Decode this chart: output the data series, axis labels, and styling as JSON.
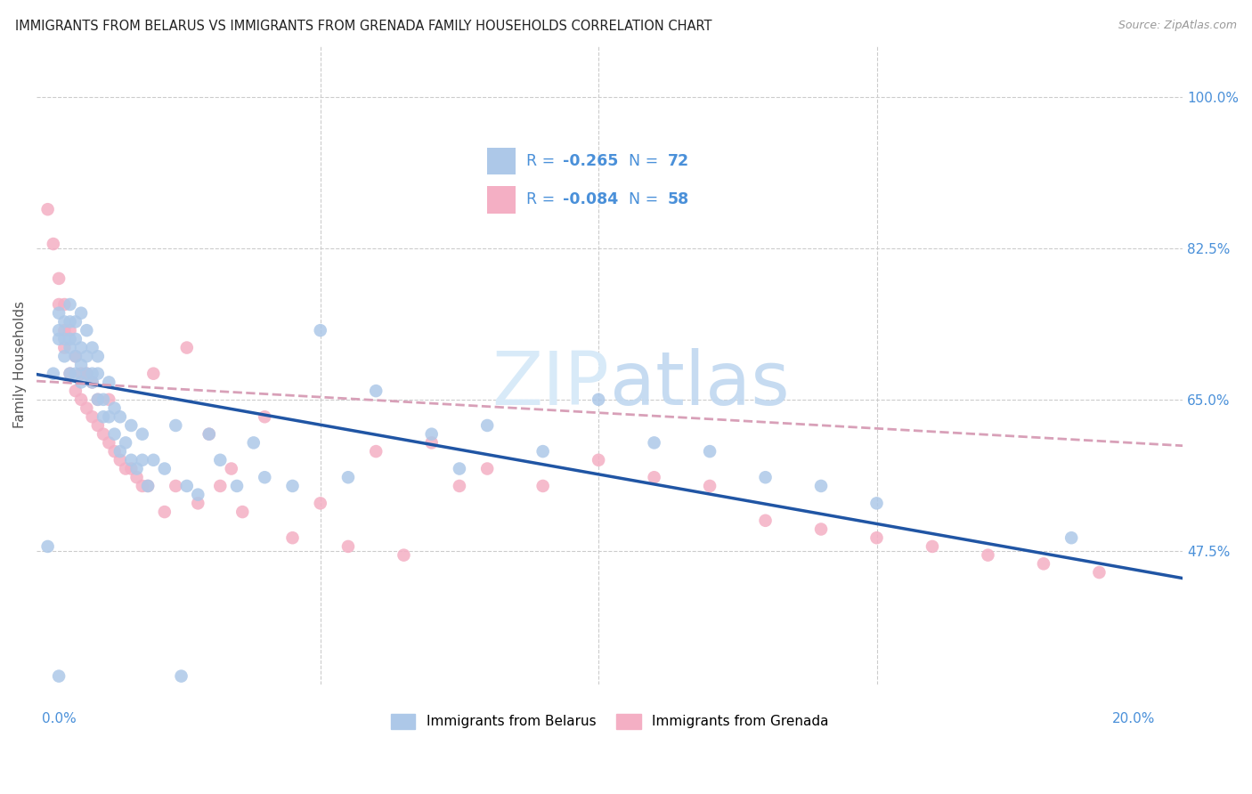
{
  "title": "IMMIGRANTS FROM BELARUS VS IMMIGRANTS FROM GRENADA FAMILY HOUSEHOLDS CORRELATION CHART",
  "source": "Source: ZipAtlas.com",
  "ylabel": "Family Households",
  "ylim": [
    0.32,
    1.06
  ],
  "xlim": [
    -0.001,
    0.205
  ],
  "yticks": [
    0.475,
    0.65,
    0.825,
    1.0
  ],
  "ytick_labels": [
    "47.5%",
    "65.0%",
    "82.5%",
    "100.0%"
  ],
  "xticks": [
    0.0,
    0.05,
    0.1,
    0.15,
    0.2
  ],
  "belarus_color": "#adc8e8",
  "grenada_color": "#f4afc4",
  "belarus_R": -0.265,
  "belarus_N": 72,
  "grenada_R": -0.084,
  "grenada_N": 58,
  "trend_belarus_color": "#2055a4",
  "trend_grenada_color": "#d8a0b8",
  "legend_text_color": "#4a90d9",
  "watermark_color": "#d8eaf8",
  "background_color": "#ffffff",
  "belarus_scatter_x": [
    0.001,
    0.002,
    0.003,
    0.003,
    0.003,
    0.004,
    0.004,
    0.004,
    0.005,
    0.005,
    0.005,
    0.005,
    0.005,
    0.006,
    0.006,
    0.006,
    0.006,
    0.007,
    0.007,
    0.007,
    0.007,
    0.008,
    0.008,
    0.008,
    0.009,
    0.009,
    0.009,
    0.01,
    0.01,
    0.01,
    0.011,
    0.011,
    0.012,
    0.012,
    0.013,
    0.013,
    0.014,
    0.014,
    0.015,
    0.016,
    0.016,
    0.017,
    0.018,
    0.018,
    0.019,
    0.02,
    0.022,
    0.024,
    0.026,
    0.028,
    0.03,
    0.032,
    0.035,
    0.038,
    0.04,
    0.045,
    0.05,
    0.055,
    0.06,
    0.07,
    0.075,
    0.08,
    0.09,
    0.1,
    0.11,
    0.12,
    0.13,
    0.14,
    0.15,
    0.185,
    0.003,
    0.025
  ],
  "belarus_scatter_y": [
    0.48,
    0.68,
    0.72,
    0.73,
    0.75,
    0.7,
    0.72,
    0.74,
    0.68,
    0.71,
    0.72,
    0.74,
    0.76,
    0.68,
    0.7,
    0.72,
    0.74,
    0.67,
    0.69,
    0.71,
    0.75,
    0.68,
    0.7,
    0.73,
    0.67,
    0.68,
    0.71,
    0.65,
    0.68,
    0.7,
    0.63,
    0.65,
    0.63,
    0.67,
    0.61,
    0.64,
    0.59,
    0.63,
    0.6,
    0.58,
    0.62,
    0.57,
    0.61,
    0.58,
    0.55,
    0.58,
    0.57,
    0.62,
    0.55,
    0.54,
    0.61,
    0.58,
    0.55,
    0.6,
    0.56,
    0.55,
    0.73,
    0.56,
    0.66,
    0.61,
    0.57,
    0.62,
    0.59,
    0.65,
    0.6,
    0.59,
    0.56,
    0.55,
    0.53,
    0.49,
    0.33,
    0.33
  ],
  "grenada_scatter_x": [
    0.001,
    0.002,
    0.003,
    0.003,
    0.004,
    0.004,
    0.004,
    0.005,
    0.005,
    0.006,
    0.006,
    0.007,
    0.007,
    0.008,
    0.008,
    0.009,
    0.009,
    0.01,
    0.01,
    0.011,
    0.012,
    0.012,
    0.013,
    0.014,
    0.015,
    0.016,
    0.017,
    0.018,
    0.019,
    0.02,
    0.022,
    0.024,
    0.026,
    0.028,
    0.03,
    0.032,
    0.034,
    0.036,
    0.04,
    0.045,
    0.05,
    0.055,
    0.06,
    0.065,
    0.07,
    0.075,
    0.08,
    0.09,
    0.1,
    0.11,
    0.12,
    0.13,
    0.14,
    0.15,
    0.16,
    0.17,
    0.18,
    0.19
  ],
  "grenada_scatter_y": [
    0.87,
    0.83,
    0.76,
    0.79,
    0.71,
    0.73,
    0.76,
    0.68,
    0.73,
    0.66,
    0.7,
    0.65,
    0.68,
    0.64,
    0.68,
    0.63,
    0.67,
    0.62,
    0.65,
    0.61,
    0.6,
    0.65,
    0.59,
    0.58,
    0.57,
    0.57,
    0.56,
    0.55,
    0.55,
    0.68,
    0.52,
    0.55,
    0.71,
    0.53,
    0.61,
    0.55,
    0.57,
    0.52,
    0.63,
    0.49,
    0.53,
    0.48,
    0.59,
    0.47,
    0.6,
    0.55,
    0.57,
    0.55,
    0.58,
    0.56,
    0.55,
    0.51,
    0.5,
    0.49,
    0.48,
    0.47,
    0.46,
    0.45
  ],
  "trend_belarus_intercept": 0.678,
  "trend_belarus_slope": -1.145,
  "trend_grenada_intercept": 0.671,
  "trend_grenada_slope": -0.363
}
